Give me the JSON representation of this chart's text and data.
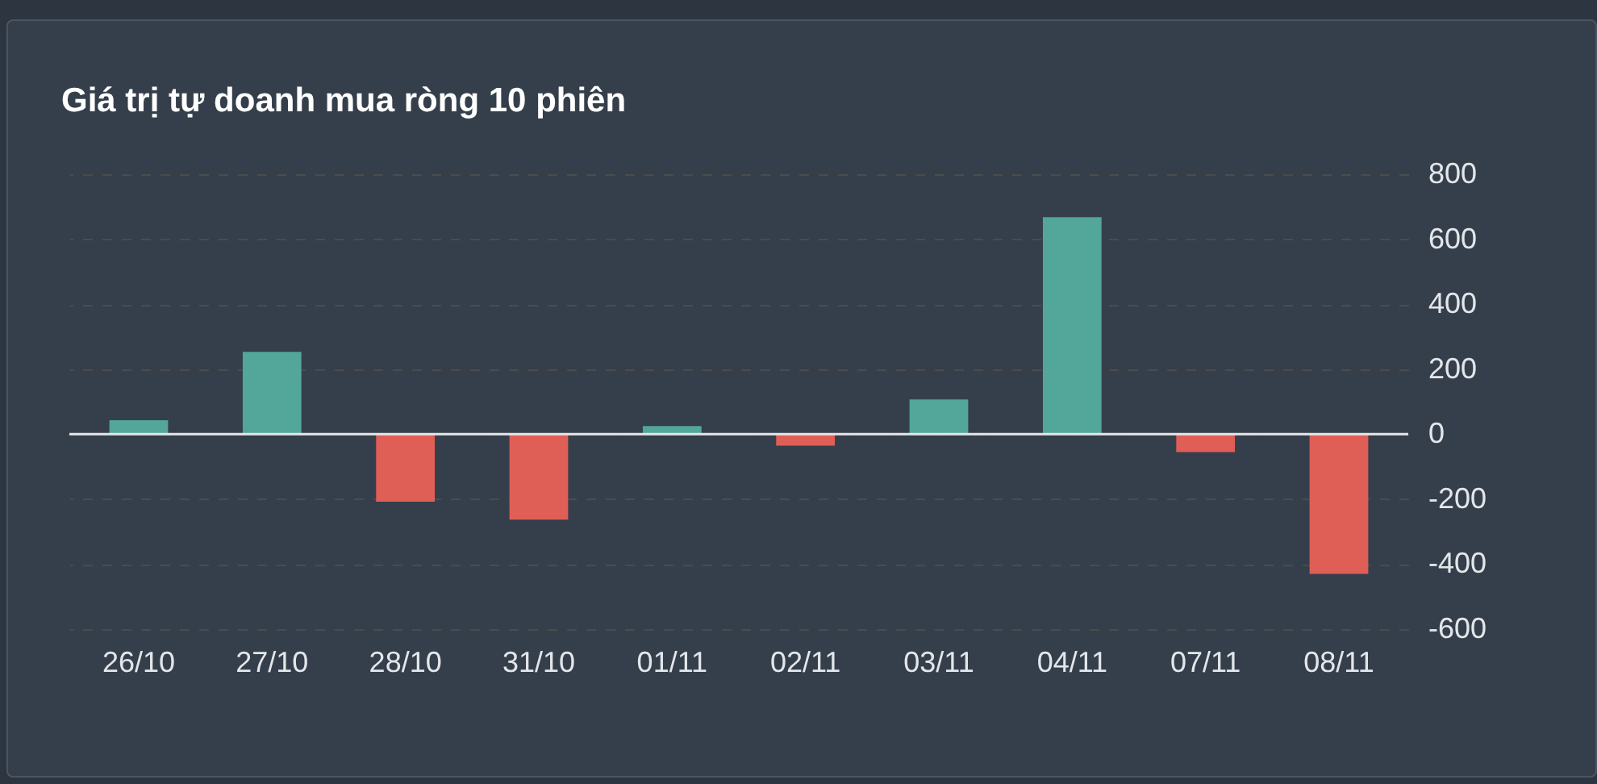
{
  "chart_data": {
    "type": "bar",
    "title": "Giá trị tự doanh mua ròng 10 phiên",
    "categories": [
      "26/10",
      "27/10",
      "28/10",
      "31/10",
      "01/11",
      "02/11",
      "03/11",
      "04/11",
      "07/11",
      "08/11"
    ],
    "values": [
      43,
      253,
      -208,
      -263,
      25,
      -35,
      107,
      668,
      -55,
      -430
    ],
    "colors": [
      "#52a69a",
      "#52a69a",
      "#df5f57",
      "#df5f57",
      "#52a69a",
      "#df5f57",
      "#52a69a",
      "#52a69a",
      "#df5f57",
      "#df5f57"
    ],
    "ylim": [
      -600,
      800
    ],
    "yticks": [
      -600,
      -400,
      -200,
      0,
      200,
      400,
      600,
      800
    ],
    "grid": "y"
  }
}
